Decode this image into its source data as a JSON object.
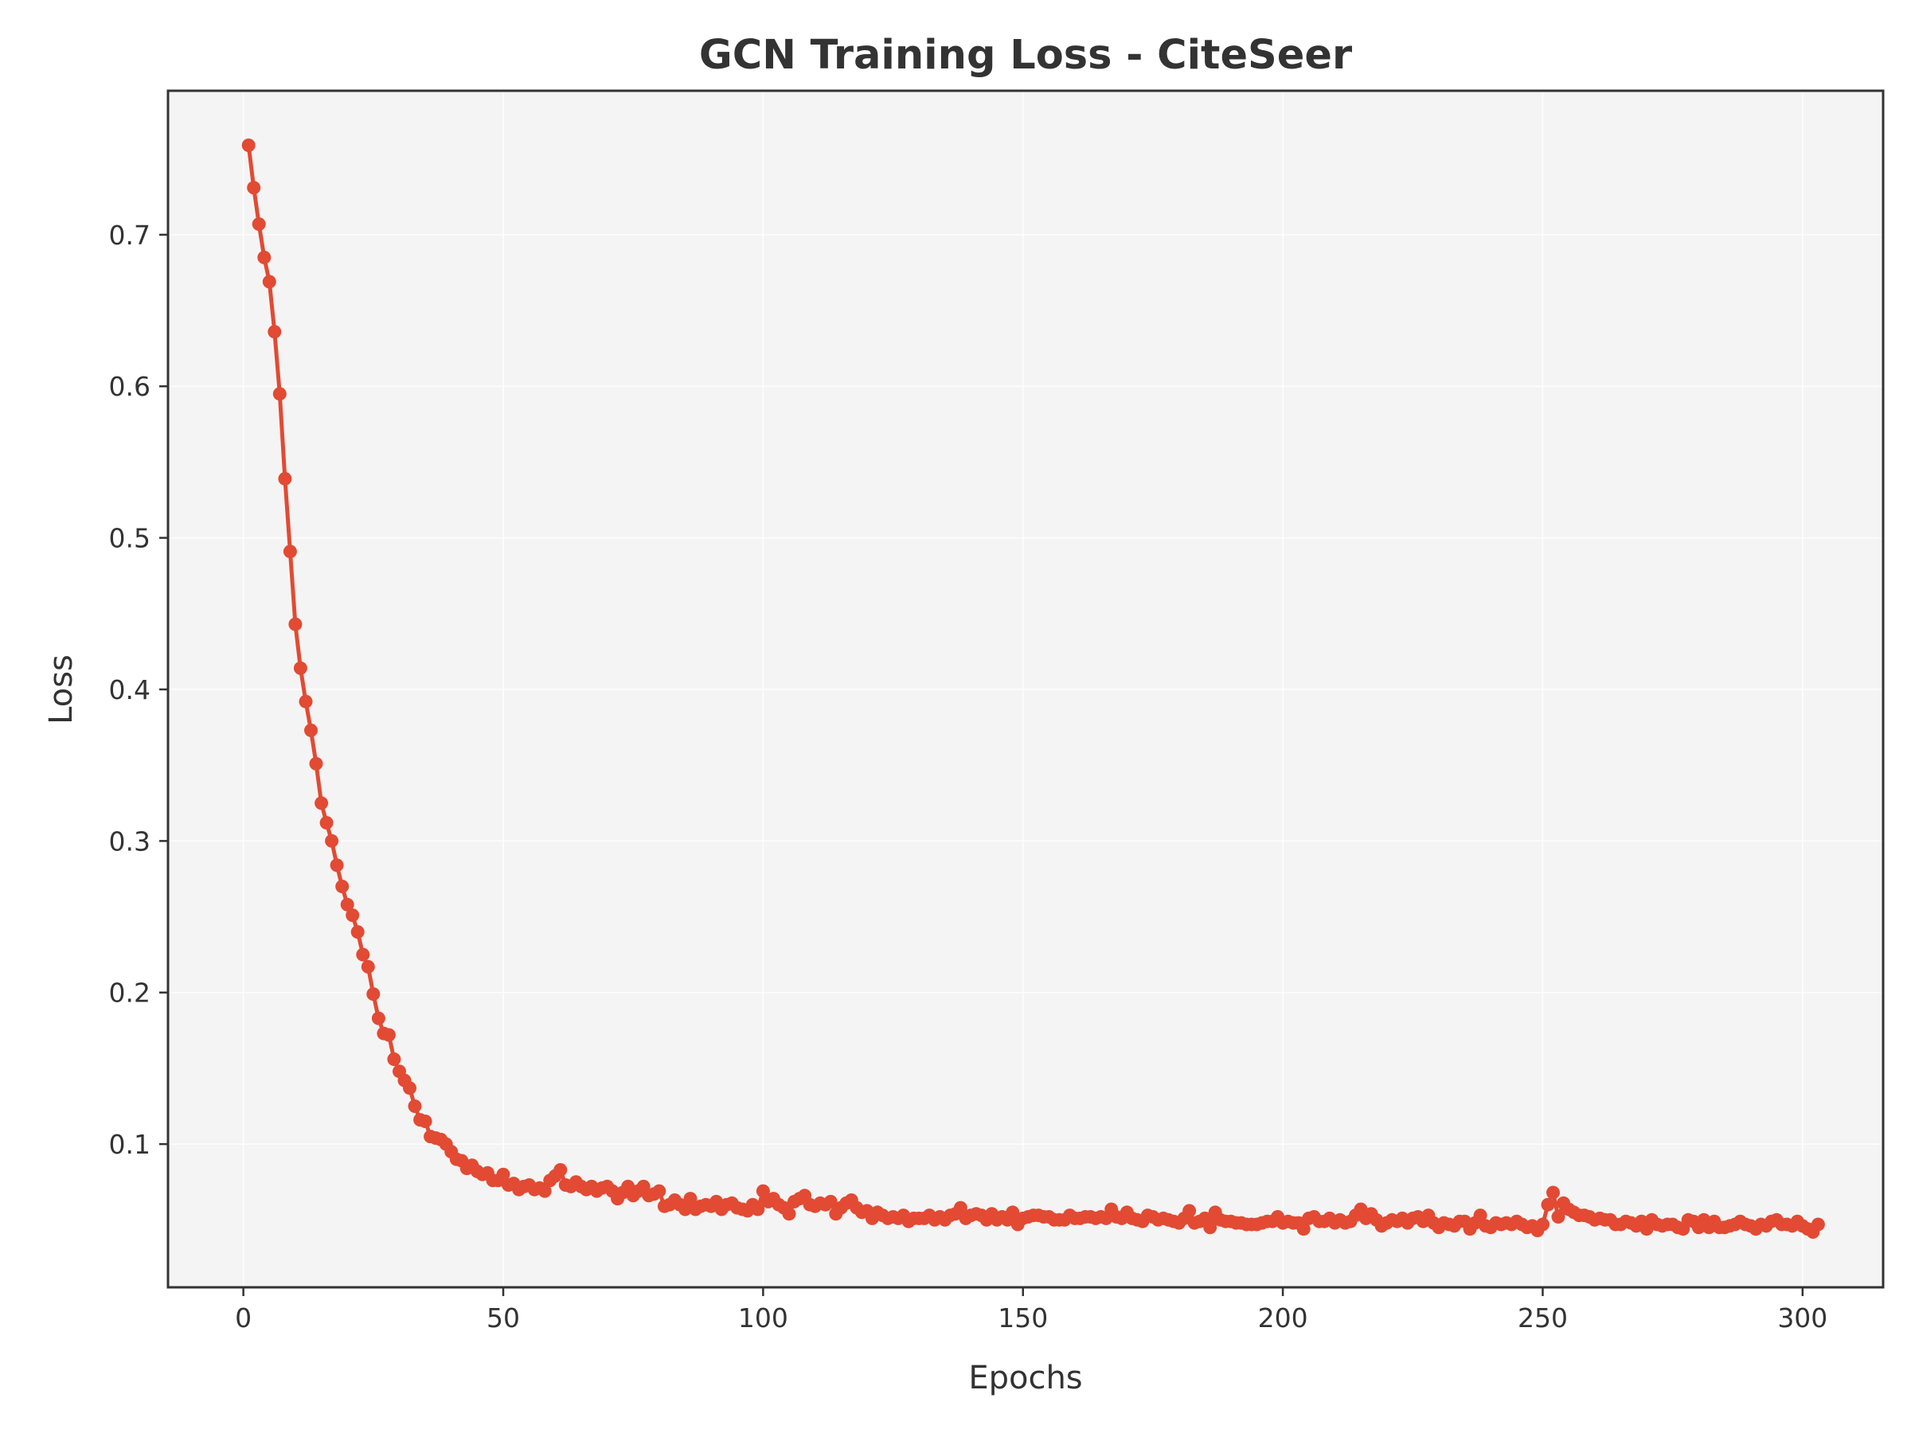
{
  "chart_data": {
    "type": "line",
    "title": "GCN Training Loss - CiteSeer",
    "xlabel": "Epochs",
    "ylabel": "Loss",
    "xlim": [
      -14.5,
      315.5
    ],
    "ylim": [
      0.0055,
      0.795
    ],
    "x_ticks": [
      0,
      50,
      100,
      150,
      200,
      250,
      300
    ],
    "y_ticks": [
      0.1,
      0.2,
      0.3,
      0.4,
      0.5,
      0.6,
      0.7
    ],
    "x_tick_labels": [
      "0",
      "50",
      "100",
      "150",
      "200",
      "250",
      "300"
    ],
    "y_tick_labels": [
      "0.1",
      "0.2",
      "0.3",
      "0.4",
      "0.5",
      "0.6",
      "0.7"
    ],
    "grid": true,
    "legend": "none",
    "colors": {
      "line": "#e24a33",
      "plot_background": "#f4f4f4",
      "spine": "#333333",
      "text": "#333333"
    },
    "series": [
      {
        "x_start": 1,
        "x_step": 1,
        "values": [
          0.759,
          0.731,
          0.707,
          0.685,
          0.669,
          0.636,
          0.595,
          0.539,
          0.491,
          0.443,
          0.414,
          0.392,
          0.373,
          0.351,
          0.325,
          0.312,
          0.3,
          0.284,
          0.27,
          0.258,
          0.251,
          0.24,
          0.225,
          0.217,
          0.199,
          0.183,
          0.173,
          0.172,
          0.156,
          0.148,
          0.142,
          0.137,
          0.125,
          0.116,
          0.115,
          0.105,
          0.104,
          0.103,
          0.1,
          0.095,
          0.09,
          0.089,
          0.084,
          0.086,
          0.082,
          0.08,
          0.081,
          0.076,
          0.076,
          0.08,
          0.073,
          0.074,
          0.07,
          0.072,
          0.073,
          0.07,
          0.071,
          0.069,
          0.076,
          0.079,
          0.083,
          0.073,
          0.072,
          0.075,
          0.072,
          0.07,
          0.072,
          0.069,
          0.071,
          0.072,
          0.069,
          0.064,
          0.068,
          0.072,
          0.066,
          0.069,
          0.072,
          0.066,
          0.067,
          0.069,
          0.059,
          0.06,
          0.063,
          0.06,
          0.057,
          0.064,
          0.057,
          0.059,
          0.06,
          0.059,
          0.062,
          0.057,
          0.06,
          0.061,
          0.058,
          0.057,
          0.056,
          0.06,
          0.057,
          0.069,
          0.062,
          0.064,
          0.06,
          0.058,
          0.054,
          0.062,
          0.064,
          0.066,
          0.06,
          0.059,
          0.061,
          0.06,
          0.062,
          0.054,
          0.058,
          0.061,
          0.063,
          0.058,
          0.055,
          0.056,
          0.051,
          0.055,
          0.053,
          0.051,
          0.052,
          0.051,
          0.053,
          0.049,
          0.051,
          0.051,
          0.051,
          0.053,
          0.05,
          0.052,
          0.05,
          0.053,
          0.054,
          0.058,
          0.051,
          0.053,
          0.054,
          0.053,
          0.05,
          0.054,
          0.05,
          0.052,
          0.05,
          0.055,
          0.047,
          0.051,
          0.052,
          0.053,
          0.053,
          0.052,
          0.052,
          0.05,
          0.05,
          0.05,
          0.053,
          0.051,
          0.051,
          0.052,
          0.052,
          0.051,
          0.052,
          0.051,
          0.057,
          0.052,
          0.051,
          0.055,
          0.051,
          0.05,
          0.049,
          0.053,
          0.052,
          0.05,
          0.051,
          0.05,
          0.049,
          0.048,
          0.051,
          0.056,
          0.048,
          0.049,
          0.051,
          0.045,
          0.055,
          0.05,
          0.049,
          0.049,
          0.048,
          0.048,
          0.047,
          0.047,
          0.047,
          0.048,
          0.049,
          0.049,
          0.052,
          0.048,
          0.049,
          0.048,
          0.048,
          0.044,
          0.051,
          0.052,
          0.049,
          0.049,
          0.051,
          0.048,
          0.05,
          0.048,
          0.049,
          0.053,
          0.057,
          0.051,
          0.054,
          0.05,
          0.046,
          0.048,
          0.05,
          0.049,
          0.051,
          0.048,
          0.051,
          0.052,
          0.049,
          0.053,
          0.048,
          0.045,
          0.048,
          0.047,
          0.046,
          0.049,
          0.049,
          0.044,
          0.048,
          0.053,
          0.046,
          0.045,
          0.048,
          0.047,
          0.048,
          0.047,
          0.049,
          0.047,
          0.045,
          0.046,
          0.043,
          0.047,
          0.06,
          0.068,
          0.052,
          0.061,
          0.057,
          0.055,
          0.053,
          0.053,
          0.052,
          0.05,
          0.051,
          0.05,
          0.05,
          0.047,
          0.047,
          0.049,
          0.048,
          0.046,
          0.049,
          0.044,
          0.05,
          0.047,
          0.046,
          0.047,
          0.047,
          0.045,
          0.044,
          0.05,
          0.049,
          0.045,
          0.05,
          0.045,
          0.049,
          0.045,
          0.045,
          0.046,
          0.047,
          0.049,
          0.047,
          0.046,
          0.044,
          0.047,
          0.046,
          0.049,
          0.05,
          0.047,
          0.047,
          0.046,
          0.049,
          0.046,
          0.044,
          0.042,
          0.047
        ]
      }
    ]
  }
}
